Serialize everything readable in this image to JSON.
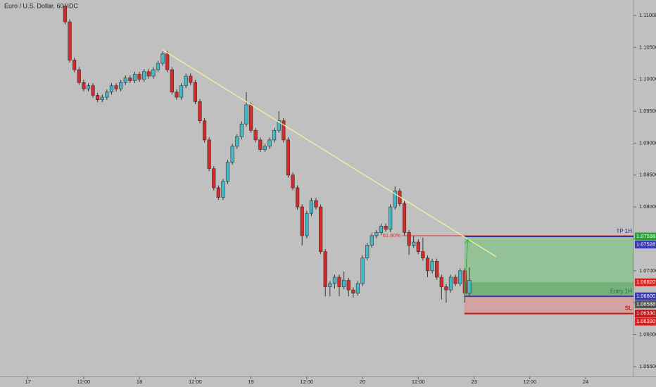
{
  "chart_data": {
    "type": "candlestick",
    "title": "Euro / U.S. Dollar, 60, IDC",
    "up_color": "#45b8c8",
    "down_color": "#d62a2a",
    "xlim": [
      -6,
      130.3
    ],
    "ylim": [
      1.05345,
      1.11242
    ],
    "xticks": [
      {
        "value": 0,
        "label": "17"
      },
      {
        "value": 12,
        "label": "12:00"
      },
      {
        "value": 24,
        "label": "18"
      },
      {
        "value": 36,
        "label": "12:00"
      },
      {
        "value": 48,
        "label": "19"
      },
      {
        "value": 60,
        "label": "12:00"
      },
      {
        "value": 72,
        "label": "20"
      },
      {
        "value": 84,
        "label": "12:00"
      },
      {
        "value": 96,
        "label": "23"
      },
      {
        "value": 108,
        "label": "12:00"
      },
      {
        "value": 120,
        "label": "24"
      }
    ],
    "yticks": [
      {
        "value": 1.055,
        "label": "1.05500"
      },
      {
        "value": 1.06,
        "label": "1.06000"
      },
      {
        "value": 1.065,
        "label": "1.06500"
      },
      {
        "value": 1.07,
        "label": "1.07000"
      },
      {
        "value": 1.075,
        "label": "1.07500"
      },
      {
        "value": 1.08,
        "label": "1.08000"
      },
      {
        "value": 1.085,
        "label": "1.08500"
      },
      {
        "value": 1.09,
        "label": "1.09000"
      },
      {
        "value": 1.095,
        "label": "1.09500"
      },
      {
        "value": 1.1,
        "label": "1.10000"
      },
      {
        "value": 1.105,
        "label": "1.10500"
      },
      {
        "value": 1.11,
        "label": "1.11000"
      }
    ],
    "x": [
      8,
      9,
      10,
      11,
      12,
      13,
      14,
      15,
      16,
      17,
      18,
      19,
      20,
      21,
      22,
      23,
      24,
      25,
      26,
      27,
      28,
      29,
      30,
      31,
      32,
      33,
      34,
      35,
      36,
      37,
      38,
      39,
      40,
      41,
      42,
      43,
      44,
      45,
      46,
      47,
      48,
      49,
      50,
      51,
      52,
      53,
      54,
      55,
      56,
      57,
      58,
      59,
      60,
      61,
      62,
      63,
      64,
      65,
      66,
      67,
      68,
      69,
      70,
      71,
      72,
      73,
      74,
      75,
      76,
      77,
      78,
      79,
      80,
      81,
      82,
      83,
      84,
      85,
      86,
      87,
      88,
      89,
      90,
      91,
      92,
      93,
      94,
      95
    ],
    "open": [
      1.1115,
      1.109,
      1.103,
      1.1015,
      1.0995,
      1.0985,
      1.099,
      1.0975,
      1.0968,
      1.0972,
      1.098,
      1.099,
      1.0985,
      1.0995,
      1.1002,
      1.0998,
      1.1008,
      1.1,
      1.1012,
      1.1005,
      1.1015,
      1.1025,
      1.104,
      1.1015,
      1.098,
      1.0972,
      1.099,
      1.1005,
      1.0995,
      1.0965,
      1.0935,
      1.0905,
      1.086,
      1.083,
      1.0815,
      1.084,
      1.087,
      1.0895,
      1.091,
      1.093,
      1.096,
      1.092,
      1.0905,
      1.089,
      1.0895,
      1.0905,
      1.092,
      1.0935,
      1.0905,
      1.085,
      1.083,
      1.08,
      1.0755,
      1.079,
      1.081,
      1.08,
      1.073,
      1.0675,
      1.068,
      1.069,
      1.0675,
      1.0685,
      1.067,
      1.0665,
      1.068,
      1.072,
      1.074,
      1.0755,
      1.076,
      1.077,
      1.0765,
      1.08,
      1.0825,
      1.0805,
      1.076,
      1.074,
      1.0745,
      1.073,
      1.072,
      1.07,
      1.0715,
      1.069,
      1.0675,
      1.067,
      1.069,
      1.068,
      1.07,
      1.0665
    ],
    "high": [
      1.1119,
      1.1094,
      1.1034,
      1.1019,
      1.0999,
      1.0994,
      1.0994,
      1.0979,
      1.0976,
      1.0984,
      1.0994,
      1.0994,
      1.0999,
      1.1006,
      1.1006,
      1.1012,
      1.1012,
      1.1016,
      1.1016,
      1.1019,
      1.1029,
      1.1044,
      1.1044,
      1.1019,
      1.0984,
      1.0994,
      1.1009,
      1.1009,
      1.0999,
      1.0969,
      1.0939,
      1.0909,
      1.0864,
      1.0834,
      1.0844,
      1.0874,
      1.0899,
      1.0914,
      1.0934,
      1.098,
      1.0964,
      1.0924,
      1.0909,
      1.0899,
      1.0909,
      1.0924,
      1.095,
      1.0939,
      1.0909,
      1.0854,
      1.0834,
      1.0804,
      1.0794,
      1.0814,
      1.0814,
      1.0804,
      1.0734,
      1.0684,
      1.0694,
      1.0694,
      1.0699,
      1.0689,
      1.0674,
      1.0684,
      1.0724,
      1.0744,
      1.0759,
      1.0764,
      1.0774,
      1.0774,
      1.0804,
      1.0832,
      1.0829,
      1.0809,
      1.0764,
      1.0755,
      1.0749,
      1.0752,
      1.0724,
      1.0719,
      1.0719,
      1.0694,
      1.0679,
      1.0694,
      1.0694,
      1.0704,
      1.0704,
      1.0705
    ],
    "low": [
      1.1086,
      1.1026,
      1.1011,
      1.0991,
      1.0981,
      1.0981,
      1.0971,
      1.0964,
      1.0964,
      1.0968,
      1.0976,
      1.0981,
      1.0981,
      1.0991,
      1.0994,
      1.0994,
      1.0996,
      1.0996,
      1.1001,
      1.1001,
      1.1011,
      1.1021,
      1.1011,
      1.0976,
      1.0968,
      1.0968,
      1.0986,
      1.0991,
      1.0961,
      1.0931,
      1.0901,
      1.0856,
      1.0826,
      1.0811,
      1.0811,
      1.0836,
      1.0866,
      1.0891,
      1.0906,
      1.0926,
      1.0916,
      1.0901,
      1.0886,
      1.0886,
      1.0891,
      1.0901,
      1.0916,
      1.0901,
      1.0846,
      1.0826,
      1.0796,
      1.074,
      1.0751,
      1.0786,
      1.0796,
      1.0726,
      1.066,
      1.066,
      1.0672,
      1.066,
      1.0671,
      1.066,
      1.0658,
      1.0661,
      1.0676,
      1.0716,
      1.0736,
      1.0751,
      1.0756,
      1.0761,
      1.0761,
      1.0796,
      1.0801,
      1.0756,
      1.0725,
      1.0736,
      1.0726,
      1.0716,
      1.069,
      1.0696,
      1.0686,
      1.0655,
      1.065,
      1.0666,
      1.0676,
      1.0676,
      1.065,
      1.0661
    ],
    "close": [
      1.109,
      1.103,
      1.1015,
      1.0995,
      1.0985,
      1.099,
      1.0975,
      1.0968,
      1.0972,
      1.098,
      1.099,
      1.0985,
      1.0995,
      1.1002,
      1.0998,
      1.1008,
      1.1,
      1.1012,
      1.1005,
      1.1015,
      1.1025,
      1.104,
      1.1015,
      1.098,
      1.0972,
      1.099,
      1.1005,
      1.0995,
      1.0965,
      1.0935,
      1.0905,
      1.086,
      1.083,
      1.0815,
      1.084,
      1.087,
      1.0895,
      1.091,
      1.093,
      1.096,
      1.092,
      1.0905,
      1.089,
      1.0895,
      1.0905,
      1.092,
      1.0935,
      1.0905,
      1.085,
      1.083,
      1.08,
      1.0755,
      1.079,
      1.081,
      1.08,
      1.073,
      1.0675,
      1.068,
      1.069,
      1.0675,
      1.0685,
      1.067,
      1.0665,
      1.068,
      1.072,
      1.074,
      1.0755,
      1.076,
      1.077,
      1.0765,
      1.08,
      1.0825,
      1.0805,
      1.076,
      1.074,
      1.0745,
      1.073,
      1.072,
      1.07,
      1.0715,
      1.069,
      1.0675,
      1.067,
      1.069,
      1.068,
      1.07,
      1.0665,
      1.0685
    ],
    "trendline": {
      "x": [
        29,
        100.8
      ],
      "y": [
        1.1046,
        1.0722
      ],
      "color": "#f3f0a0"
    },
    "fib_level": {
      "label": "61.80%",
      "value": 1.0755,
      "x_start": 80.5,
      "color": "#e03030"
    },
    "position": {
      "x_start": 93.9,
      "tp": 1.07538,
      "entry": 1.066,
      "sl": 1.0633,
      "current": 1.0682,
      "tp_label": "TP 1H",
      "entry_label": "Entry 1H",
      "sl_label": "SL"
    },
    "price_tags": [
      {
        "value": 1.07538,
        "label": "1.07538",
        "color": "#2e9e3a"
      },
      {
        "value": 1.07528,
        "label": "1.07528",
        "color": "#3a3ab0"
      },
      {
        "value": 1.0682,
        "label": "1.06820",
        "color": "#e02020"
      },
      {
        "value": 1.066,
        "label": "1.06600",
        "color": "#3a3ab0"
      },
      {
        "value": 1.06588,
        "label": "1.06588",
        "color": "#555555"
      },
      {
        "value": 1.0633,
        "label": "1.06330",
        "color": "#b81c1c"
      },
      {
        "value": 1.0633,
        "label": "1.06330",
        "color": "#e02020"
      }
    ]
  }
}
